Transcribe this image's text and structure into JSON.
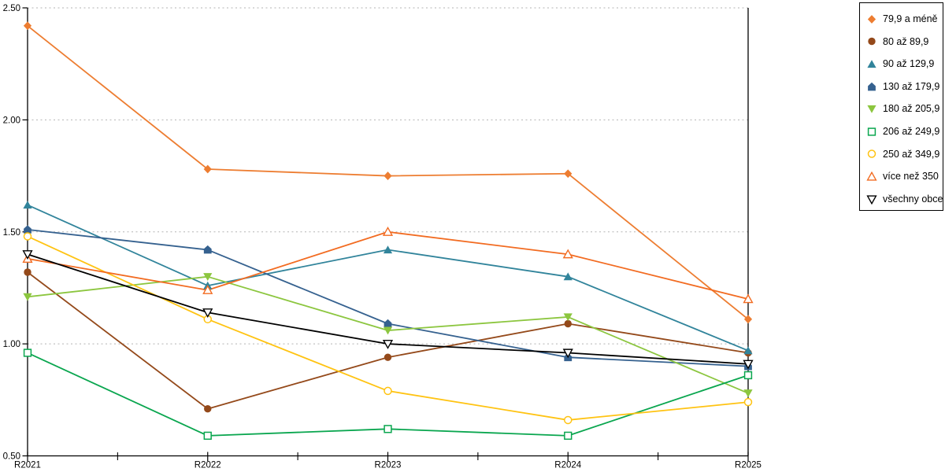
{
  "chart_data": {
    "type": "line",
    "title": "",
    "x_categories": [
      "R2021",
      "R2022",
      "R2023",
      "R2024",
      "R2025"
    ],
    "y_tick_labels": [
      "0.50",
      "1.00",
      "1.50",
      "2.00",
      "2.50"
    ],
    "ylim": [
      0.5,
      2.5
    ],
    "grid": "horizontal dotted gridlines every 0.50",
    "legend_position": "outside top-right, boxed",
    "series": [
      {
        "name": "79,9 a méně",
        "color": "#ED7D31",
        "marker": "diamond-filled",
        "values": [
          2.42,
          1.78,
          1.75,
          1.76,
          1.11
        ]
      },
      {
        "name": "80 až 89,9",
        "color": "#94491A",
        "marker": "circle-filled",
        "values": [
          1.32,
          0.71,
          0.94,
          1.09,
          0.96
        ]
      },
      {
        "name": "90 až 129,9",
        "color": "#31849B",
        "marker": "triangle-up-filled",
        "values": [
          1.62,
          1.26,
          1.42,
          1.3,
          0.97
        ]
      },
      {
        "name": "130 až 179,9",
        "color": "#35618F",
        "marker": "pentagon-filled",
        "values": [
          1.51,
          1.42,
          1.09,
          0.94,
          0.9
        ]
      },
      {
        "name": "180 až 205,9",
        "color": "#8CC63F",
        "marker": "triangle-down-filled",
        "values": [
          1.21,
          1.3,
          1.06,
          1.12,
          0.78
        ]
      },
      {
        "name": "206 až 249,9",
        "color": "#0AA64F",
        "marker": "square-open",
        "values": [
          0.96,
          0.59,
          0.62,
          0.59,
          0.86
        ]
      },
      {
        "name": "250 až 349,9",
        "color": "#FFC312",
        "marker": "circle-open",
        "values": [
          1.48,
          1.11,
          0.79,
          0.66,
          0.74
        ]
      },
      {
        "name": "více než 350",
        "color": "#F26B21",
        "marker": "triangle-up-open",
        "values": [
          1.38,
          1.24,
          1.5,
          1.4,
          1.2
        ]
      },
      {
        "name": "všechny obce",
        "color": "#000000",
        "marker": "triangle-down-open",
        "values": [
          1.4,
          1.14,
          1.0,
          0.96,
          0.91
        ]
      }
    ]
  },
  "style": {
    "axis_color": "#000000",
    "grid_color": "#b3b3b3",
    "background": "#ffffff"
  }
}
